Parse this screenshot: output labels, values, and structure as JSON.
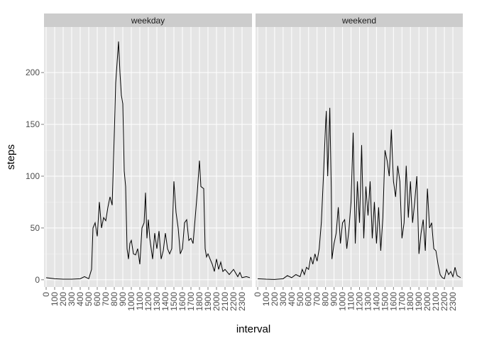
{
  "chart_data": [
    {
      "type": "line",
      "title": "weekday",
      "y_label": "steps",
      "x_label": "interval",
      "color": "#000000",
      "grid": true,
      "x": [
        0,
        100,
        200,
        300,
        400,
        430,
        500,
        520,
        530,
        545,
        600,
        615,
        630,
        645,
        700,
        715,
        730,
        745,
        800,
        810,
        830,
        840,
        850,
        900,
        910,
        920,
        930,
        940,
        950,
        1000,
        1015,
        1030,
        1045,
        1100,
        1115,
        1130,
        1140,
        1150,
        1200,
        1210,
        1230,
        1245,
        1300,
        1315,
        1330,
        1345,
        1400,
        1415,
        1430,
        1445,
        1500,
        1515,
        1530,
        1545,
        1600,
        1615,
        1630,
        1645,
        1700,
        1715,
        1730,
        1745,
        1800,
        1810,
        1830,
        1840,
        1850,
        1900,
        1915,
        1930,
        1945,
        2000,
        2015,
        2030,
        2045,
        2100,
        2130,
        2200,
        2230,
        2245,
        2300,
        2330,
        2355
      ],
      "values": [
        2,
        1,
        0.5,
        0.5,
        1,
        3,
        1,
        10,
        50,
        55,
        42,
        75,
        50,
        60,
        57,
        70,
        80,
        72,
        140,
        190,
        230,
        200,
        178,
        170,
        105,
        90,
        30,
        20,
        35,
        38,
        25,
        24,
        30,
        15,
        50,
        55,
        84,
        40,
        58,
        40,
        20,
        45,
        30,
        47,
        20,
        28,
        45,
        30,
        25,
        30,
        95,
        65,
        50,
        25,
        30,
        55,
        58,
        38,
        40,
        35,
        60,
        85,
        115,
        90,
        88,
        30,
        22,
        25,
        20,
        15,
        8,
        20,
        10,
        17,
        8,
        10,
        5,
        10,
        3,
        7,
        2,
        3,
        2
      ],
      "xlim": [
        0,
        2355
      ],
      "ylim": [
        -7,
        244
      ],
      "xticks": [
        0,
        100,
        200,
        300,
        400,
        500,
        600,
        700,
        800,
        900,
        1000,
        1100,
        1200,
        1300,
        1400,
        1500,
        1600,
        1700,
        1800,
        1900,
        2000,
        2100,
        2200,
        2300
      ],
      "yticks": [
        0,
        50,
        100,
        150,
        200
      ]
    },
    {
      "type": "line",
      "title": "weekend",
      "color": "#000000",
      "grid": true,
      "x": [
        0,
        100,
        200,
        300,
        330,
        400,
        430,
        500,
        515,
        530,
        545,
        600,
        615,
        630,
        645,
        700,
        715,
        730,
        745,
        800,
        805,
        815,
        830,
        840,
        845,
        900,
        915,
        930,
        945,
        1000,
        1015,
        1030,
        1045,
        1100,
        1115,
        1130,
        1145,
        1200,
        1215,
        1230,
        1245,
        1300,
        1315,
        1330,
        1345,
        1400,
        1415,
        1430,
        1445,
        1500,
        1515,
        1530,
        1545,
        1600,
        1615,
        1630,
        1645,
        1700,
        1715,
        1730,
        1745,
        1800,
        1815,
        1830,
        1845,
        1900,
        1915,
        1930,
        1945,
        2000,
        2015,
        2030,
        2045,
        2100,
        2115,
        2130,
        2145,
        2200,
        2215,
        2230,
        2245,
        2300,
        2315,
        2330,
        2355
      ],
      "values": [
        1,
        0.5,
        0.3,
        1,
        4,
        2,
        5,
        3,
        10,
        5,
        12,
        10,
        22,
        15,
        25,
        18,
        30,
        55,
        100,
        150,
        163,
        100,
        166,
        90,
        20,
        35,
        45,
        70,
        35,
        55,
        58,
        30,
        48,
        75,
        142,
        35,
        95,
        55,
        130,
        40,
        90,
        62,
        95,
        40,
        75,
        35,
        70,
        28,
        60,
        125,
        115,
        100,
        145,
        95,
        80,
        110,
        95,
        40,
        55,
        110,
        60,
        95,
        55,
        75,
        100,
        25,
        45,
        58,
        28,
        88,
        50,
        55,
        30,
        28,
        15,
        5,
        2,
        1,
        10,
        5,
        8,
        3,
        12,
        4,
        2
      ],
      "xlim": [
        0,
        2355
      ],
      "ylim": [
        -7,
        244
      ],
      "xticks": [
        0,
        100,
        200,
        300,
        400,
        500,
        600,
        700,
        800,
        900,
        1000,
        1100,
        1200,
        1300,
        1400,
        1500,
        1600,
        1700,
        1800,
        1900,
        2000,
        2100,
        2200,
        2300
      ],
      "yticks": [
        0,
        50,
        100,
        150,
        200
      ]
    }
  ]
}
